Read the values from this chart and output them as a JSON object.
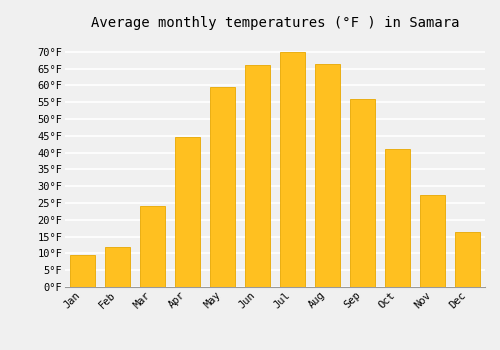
{
  "title": "Average monthly temperatures (°F ) in Samara",
  "months": [
    "Jan",
    "Feb",
    "Mar",
    "Apr",
    "May",
    "Jun",
    "Jul",
    "Aug",
    "Sep",
    "Oct",
    "Nov",
    "Dec"
  ],
  "values": [
    9.5,
    12,
    24,
    44.5,
    59.5,
    66,
    70,
    66.5,
    56,
    41,
    27.5,
    16.5
  ],
  "bar_color": "#FFC020",
  "bar_edge_color": "#E8A800",
  "ylim": [
    0,
    75
  ],
  "yticks": [
    0,
    5,
    10,
    15,
    20,
    25,
    30,
    35,
    40,
    45,
    50,
    55,
    60,
    65,
    70
  ],
  "ytick_labels": [
    "0°F",
    "5°F",
    "10°F",
    "15°F",
    "20°F",
    "25°F",
    "30°F",
    "35°F",
    "40°F",
    "45°F",
    "50°F",
    "55°F",
    "60°F",
    "65°F",
    "70°F"
  ],
  "background_color": "#F0F0F0",
  "grid_color": "#FFFFFF",
  "title_fontsize": 10,
  "tick_fontsize": 7.5,
  "bar_width": 0.7
}
